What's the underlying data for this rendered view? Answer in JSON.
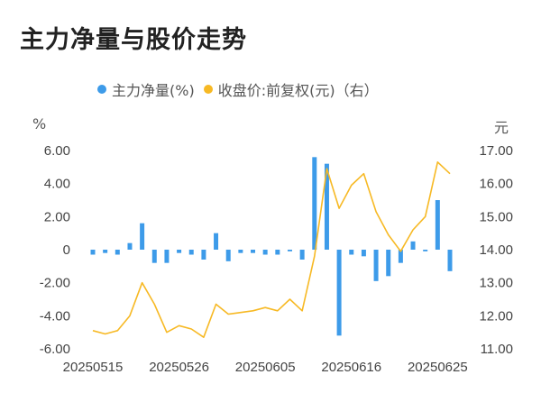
{
  "title": "主力净量与股价走势",
  "legend": [
    {
      "label": "主力净量(%)",
      "color": "#3d9be9"
    },
    {
      "label": "收盘价:前复权(元)（右）",
      "color": "#f7b924"
    }
  ],
  "chart_data": {
    "type": "bar+line",
    "left_axis": {
      "unit": "%",
      "ticks": [
        "6.00",
        "4.00",
        "2.00",
        "0",
        "-2.00",
        "-4.00",
        "-6.00"
      ],
      "range": [
        -6,
        6
      ]
    },
    "right_axis": {
      "unit": "元",
      "ticks": [
        "17.00",
        "16.00",
        "15.00",
        "14.00",
        "13.00",
        "12.00",
        "11.00"
      ],
      "range": [
        11,
        17
      ]
    },
    "x_tick_labels": [
      "20250515",
      "20250526",
      "20250605",
      "20250616",
      "20250625"
    ],
    "x_tick_index": [
      0,
      7,
      14,
      21,
      28
    ],
    "series": [
      {
        "name": "主力净量(%)",
        "type": "bar",
        "axis": "left",
        "color": "#3d9be9",
        "values": [
          -0.3,
          -0.2,
          -0.3,
          0.4,
          1.6,
          -0.8,
          -0.8,
          -0.2,
          -0.3,
          -0.6,
          1.0,
          -0.7,
          -0.2,
          -0.2,
          -0.3,
          -0.3,
          -0.1,
          -0.6,
          5.6,
          5.2,
          -5.2,
          -0.3,
          -0.4,
          -1.9,
          -1.6,
          -0.8,
          0.5,
          -0.1,
          3.0,
          -1.3
        ]
      },
      {
        "name": "收盘价:前复权(元)（右）",
        "type": "line",
        "axis": "right",
        "color": "#f7b924",
        "values": [
          11.55,
          11.45,
          11.55,
          12.0,
          13.0,
          12.35,
          11.5,
          11.7,
          11.6,
          11.35,
          12.35,
          12.05,
          12.1,
          12.15,
          12.25,
          12.15,
          12.5,
          12.15,
          13.8,
          16.45,
          15.25,
          15.95,
          16.3,
          15.15,
          14.45,
          13.95,
          14.6,
          15.0,
          16.65,
          16.3
        ]
      }
    ]
  }
}
